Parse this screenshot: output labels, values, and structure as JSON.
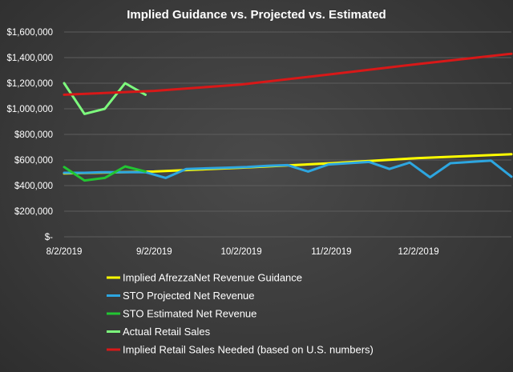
{
  "chart_data": {
    "type": "line",
    "title": "Implied Guidance vs. Projected vs. Estimated",
    "xlabel": "",
    "ylabel": "",
    "x_ticks": [
      "8/2/2019",
      "9/2/2019",
      "10/2/2019",
      "11/2/2019",
      "12/2/2019"
    ],
    "x_range": [
      "8/2/2019",
      "1/3/2020"
    ],
    "y_ticks": [
      "$-",
      "$200,000",
      "$400,000",
      "$600,000",
      "$800,000",
      "$1,000,000",
      "$1,200,000",
      "$1,400,000",
      "$1,600,000"
    ],
    "ylim": [
      0,
      1600000
    ],
    "grid": true,
    "legend_position": "bottom",
    "series": [
      {
        "name": "Implied AfrezzaNet Revenue Guidance",
        "color": "#ffff00",
        "points": [
          [
            "8/2/2019",
            495000
          ],
          [
            "9/2/2019",
            510000
          ],
          [
            "10/2/2019",
            540000
          ],
          [
            "11/2/2019",
            575000
          ],
          [
            "12/2/2019",
            615000
          ],
          [
            "1/3/2020",
            645000
          ]
        ]
      },
      {
        "name": "STO Projected Net Revenue",
        "color": "#2da6e0",
        "points": [
          [
            "8/2/2019",
            500000
          ],
          [
            "8/9/2019",
            500000
          ],
          [
            "8/16/2019",
            505000
          ],
          [
            "8/23/2019",
            505000
          ],
          [
            "8/30/2019",
            505000
          ],
          [
            "9/6/2019",
            460000
          ],
          [
            "9/13/2019",
            530000
          ],
          [
            "9/20/2019",
            535000
          ],
          [
            "9/27/2019",
            540000
          ],
          [
            "10/4/2019",
            545000
          ],
          [
            "10/11/2019",
            555000
          ],
          [
            "10/18/2019",
            560000
          ],
          [
            "10/25/2019",
            510000
          ],
          [
            "11/1/2019",
            565000
          ],
          [
            "11/8/2019",
            575000
          ],
          [
            "11/15/2019",
            585000
          ],
          [
            "11/22/2019",
            530000
          ],
          [
            "11/29/2019",
            580000
          ],
          [
            "12/6/2019",
            465000
          ],
          [
            "12/13/2019",
            575000
          ],
          [
            "12/20/2019",
            585000
          ],
          [
            "12/27/2019",
            595000
          ],
          [
            "1/3/2020",
            470000
          ]
        ]
      },
      {
        "name": "STO Estimated Net Revenue",
        "color": "#22c532",
        "points": [
          [
            "8/2/2019",
            545000
          ],
          [
            "8/9/2019",
            440000
          ],
          [
            "8/16/2019",
            460000
          ],
          [
            "8/23/2019",
            550000
          ],
          [
            "8/30/2019",
            510000
          ]
        ]
      },
      {
        "name": "Actual Retail Sales",
        "color": "#7dfa7d",
        "points": [
          [
            "8/2/2019",
            1200000
          ],
          [
            "8/9/2019",
            960000
          ],
          [
            "8/16/2019",
            1000000
          ],
          [
            "8/23/2019",
            1200000
          ],
          [
            "8/30/2019",
            1110000
          ]
        ]
      },
      {
        "name": "Implied Retail Sales Needed (based on U.S. numbers)",
        "color": "#d81818",
        "points": [
          [
            "8/2/2019",
            1110000
          ],
          [
            "9/2/2019",
            1140000
          ],
          [
            "10/2/2019",
            1190000
          ],
          [
            "11/2/2019",
            1270000
          ],
          [
            "12/2/2019",
            1350000
          ],
          [
            "1/3/2020",
            1430000
          ]
        ]
      }
    ]
  }
}
